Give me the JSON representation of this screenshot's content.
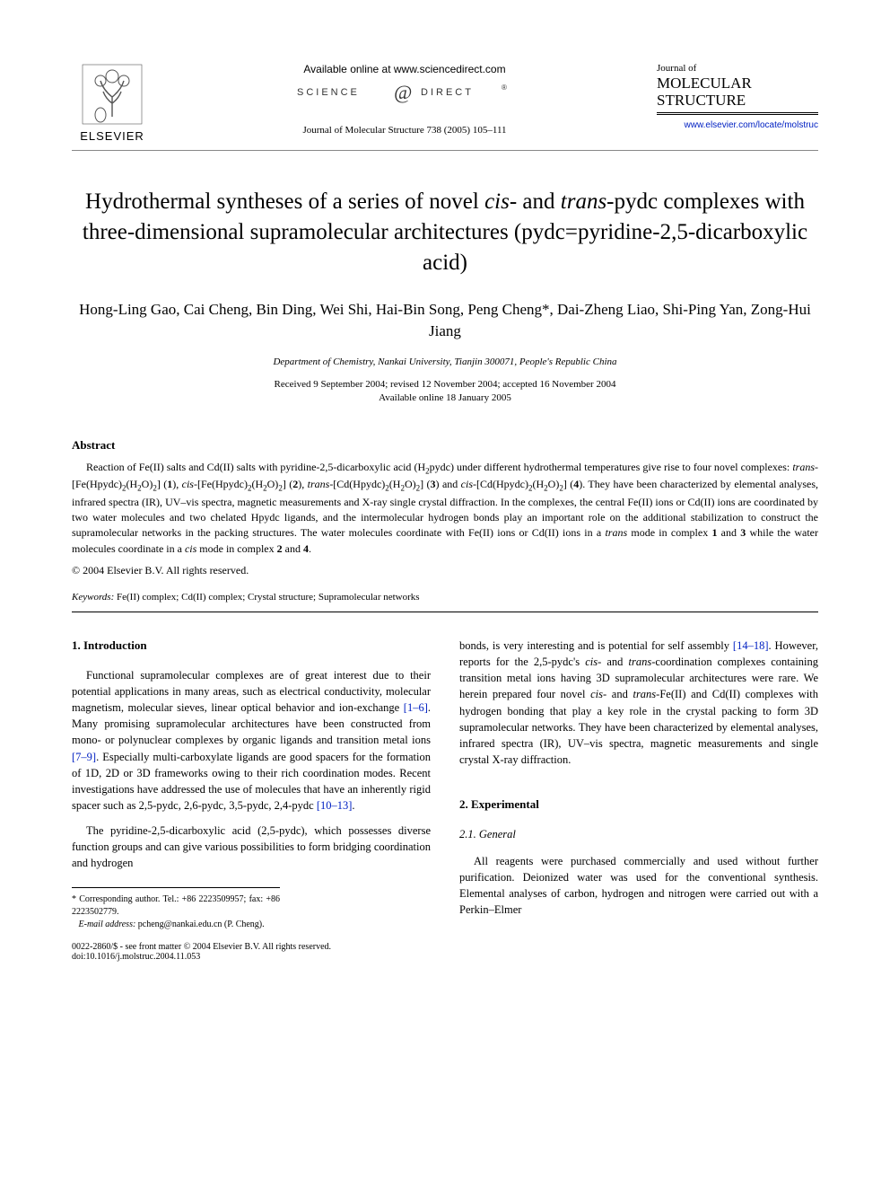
{
  "header": {
    "publisher": "ELSEVIER",
    "available_online": "Available online at www.sciencedirect.com",
    "sciencedirect": "SCIENCE @ DIRECT®",
    "journal_ref": "Journal of Molecular Structure 738 (2005) 105–111",
    "journal_small": "Journal of",
    "journal_large": "MOLECULAR STRUCTURE",
    "journal_link": "www.elsevier.com/locate/molstruc"
  },
  "title_parts": {
    "p1": "Hydrothermal syntheses of a series of novel ",
    "p2": "cis",
    "p3": "- and ",
    "p4": "trans",
    "p5": "-pydc complexes with three-dimensional supramolecular architectures (pydc=pyridine-2,5-dicarboxylic acid)"
  },
  "authors": "Hong-Ling Gao, Cai Cheng, Bin Ding, Wei Shi, Hai-Bin Song, Peng Cheng*, Dai-Zheng Liao, Shi-Ping Yan, Zong-Hui Jiang",
  "affiliation": "Department of Chemistry, Nankai University, Tianjin 300071, People's Republic China",
  "dates_line1": "Received 9 September 2004; revised 12 November 2004; accepted 16 November 2004",
  "dates_line2": "Available online 18 January 2005",
  "abstract_heading": "Abstract",
  "abstract_html": "Reaction of Fe(II) salts and Cd(II) salts with pyridine-2,5-dicarboxylic acid (H<sub>2</sub>pydc) under different hydrothermal temperatures give rise to four novel complexes: <span class='ital'>trans</span>-[Fe(Hpydc)<sub>2</sub>(H<sub>2</sub>O)<sub>2</sub>] (<span class='bold'>1</span>), <span class='ital'>cis</span>-[Fe(Hpydc)<sub>2</sub>(H<sub>2</sub>O)<sub>2</sub>] (<span class='bold'>2</span>), <span class='ital'>trans</span>-[Cd(Hpydc)<sub>2</sub>(H<sub>2</sub>O)<sub>2</sub>] (<span class='bold'>3</span>) and <span class='ital'>cis</span>-[Cd(Hpydc)<sub>2</sub>(H<sub>2</sub>O)<sub>2</sub>] (<span class='bold'>4</span>). They have been characterized by elemental analyses, infrared spectra (IR), UV–vis spectra, magnetic measurements and X-ray single crystal diffraction. In the complexes, the central Fe(II) ions or Cd(II) ions are coordinated by two water molecules and two chelated Hpydc ligands, and the intermolecular hydrogen bonds play an important role on the additional stabilization to construct the supramolecular networks in the packing structures. The water molecules coordinate with Fe(II) ions or Cd(II) ions in a <span class='ital'>trans</span> mode in complex <span class='bold'>1</span> and <span class='bold'>3</span> while the water molecules coordinate in a <span class='ital'>cis</span> mode in complex <span class='bold'>2</span> and <span class='bold'>4</span>.",
  "copyright": "© 2004 Elsevier B.V. All rights reserved.",
  "keywords_label": "Keywords:",
  "keywords_text": " Fe(II) complex; Cd(II) complex; Crystal structure; Supramolecular networks",
  "sec1_heading": "1. Introduction",
  "sec1_p1_html": "Functional supramolecular complexes are of great interest due to their potential applications in many areas, such as electrical conductivity, molecular magnetism, molecular sieves, linear optical behavior and ion-exchange <span class='cite'>[1–6]</span>. Many promising supramolecular architectures have been constructed from mono- or polynuclear complexes by organic ligands and transition metal ions <span class='cite'>[7–9]</span>. Especially multi-carboxylate ligands are good spacers for the formation of 1D, 2D or 3D frameworks owing to their rich coordination modes. Recent investigations have addressed the use of molecules that have an inherently rigid spacer such as 2,5-pydc, 2,6-pydc, 3,5-pydc, 2,4-pydc <span class='cite'>[10–13]</span>.",
  "sec1_p2_html": "The pyridine-2,5-dicarboxylic acid (2,5-pydc), which possesses diverse function groups and can give various possibilities to form bridging coordination and hydrogen",
  "col2_p1_html": "bonds, is very interesting and is potential for self assembly <span class='cite'>[14–18]</span>. However, reports for the 2,5-pydc's <span class='ital'>cis</span>- and <span class='ital'>trans</span>-coordination complexes containing transition metal ions having 3D supramolecular architectures were rare. We herein prepared four novel <span class='ital'>cis</span>- and <span class='ital'>trans</span>-Fe(II) and Cd(II) complexes with hydrogen bonding that play a key role in the crystal packing to form 3D supramolecular networks. They have been characterized by elemental analyses, infrared spectra (IR), UV–vis spectra, magnetic measurements and single crystal X-ray diffraction.",
  "sec2_heading": "2. Experimental",
  "sec2_1_heading": "2.1. General",
  "sec2_1_p1": "All reagents were purchased commercially and used without further purification. Deionized water was used for the conventional synthesis. Elemental analyses of carbon, hydrogen and nitrogen were carried out with a Perkin–Elmer",
  "footnote_corr": "* Corresponding author. Tel.: +86 2223509957; fax: +86 2223502779.",
  "footnote_email_label": "E-mail address:",
  "footnote_email": " pcheng@nankai.edu.cn (P. Cheng).",
  "footer_left": "0022-2860/$ - see front matter © 2004 Elsevier B.V. All rights reserved.",
  "footer_doi": "doi:10.1016/j.molstruc.2004.11.053",
  "colors": {
    "link": "#0020c2",
    "text": "#000000",
    "bg": "#ffffff",
    "rule": "#888888"
  }
}
